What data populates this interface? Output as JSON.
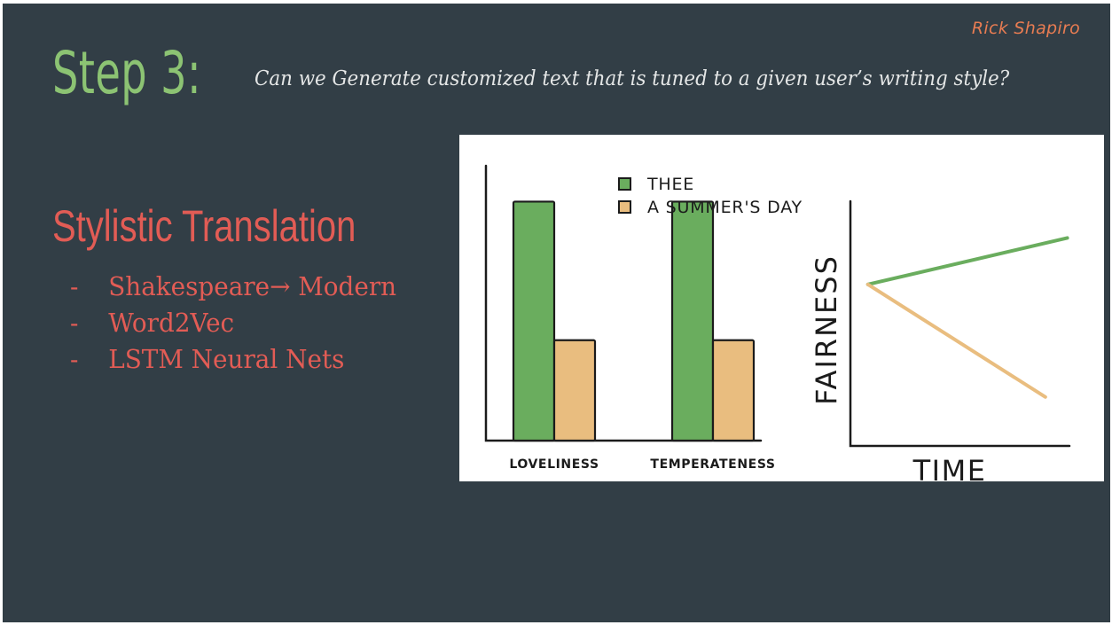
{
  "slide": {
    "author": "Rick Shapiro",
    "title": "Step 3:",
    "subtitle": "Can we Generate customized text that is tuned to a given user’s writing style?",
    "section_heading": "Stylistic Translation",
    "bullets": [
      {
        "dash": "-",
        "text": "Shakespeare→ Modern"
      },
      {
        "dash": "-",
        "text": "Word2Vec"
      },
      {
        "dash": "-",
        "text": "LSTM Neural Nets"
      }
    ]
  },
  "colors": {
    "background": "#323e46",
    "title": "#8cc373",
    "accent": "#e25c55",
    "author": "#e87c52",
    "thee": "#6aad5e",
    "summers_day": "#e9bd7f"
  },
  "chart_data": [
    {
      "type": "bar",
      "title": "",
      "categories": [
        "LOVELINESS",
        "TEMPERATENESS"
      ],
      "series": [
        {
          "name": "THEE",
          "values": [
            100,
            100
          ]
        },
        {
          "name": "A SUMMER'S DAY",
          "values": [
            42,
            42
          ]
        }
      ],
      "ylim": [
        0,
        115
      ],
      "legend": "top-right",
      "grid": false
    },
    {
      "type": "line",
      "title": "",
      "xlabel": "TIME",
      "ylabel": "FAIRNESS",
      "x": [
        0,
        1
      ],
      "series": [
        {
          "values": [
            66,
            85
          ]
        },
        {
          "values": [
            66,
            20
          ]
        }
      ],
      "xlim": [
        0,
        1
      ],
      "ylim": [
        0,
        100
      ],
      "grid": false
    }
  ]
}
